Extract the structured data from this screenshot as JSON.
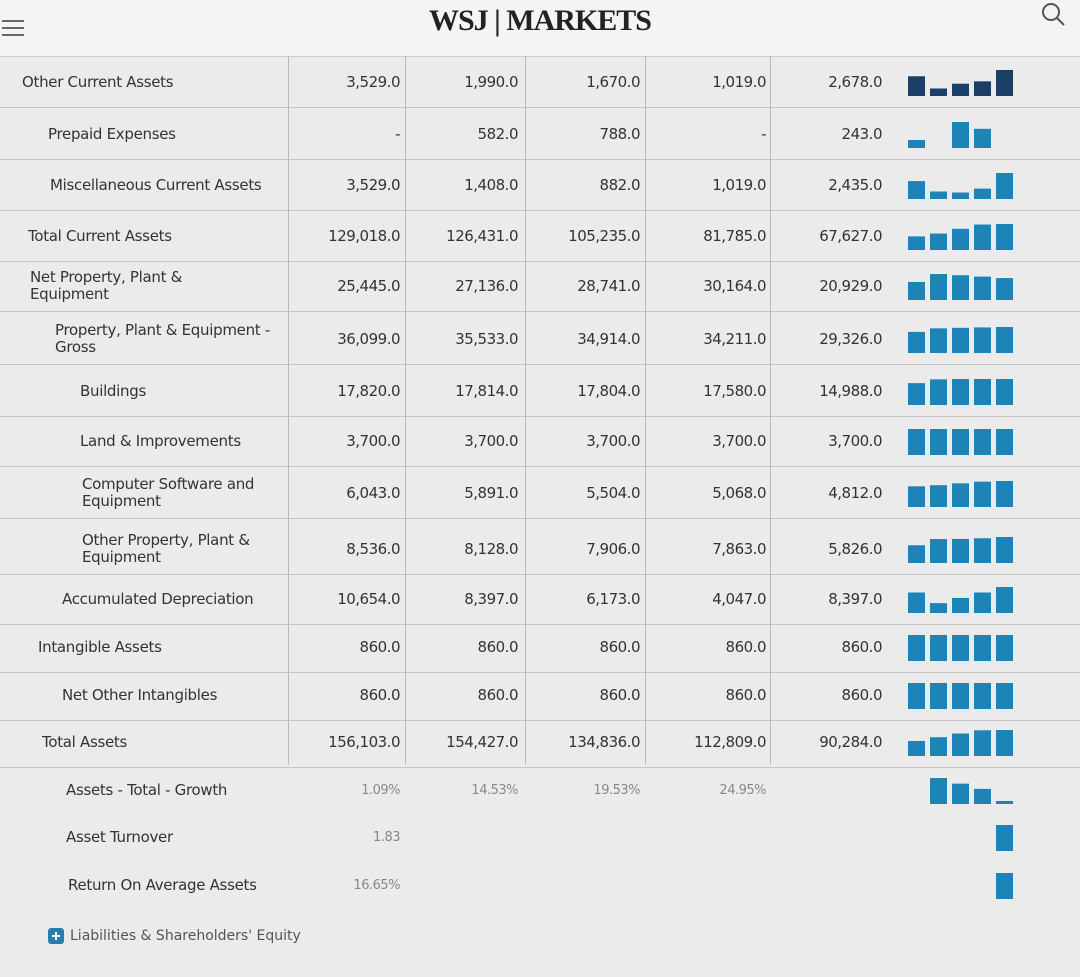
{
  "header": {
    "title": "WSJ | MARKETS"
  },
  "table": {
    "rows": [
      {
        "label": "Other Current Assets",
        "values": [
          "3,529.0",
          "1,990.0",
          "1,670.0",
          "1,019.0",
          "2,678.0"
        ]
      },
      {
        "label": "Prepaid Expenses",
        "values": [
          "-",
          "582.0",
          "788.0",
          "-",
          "243.0"
        ]
      },
      {
        "label": "Miscellaneous Current Assets",
        "values": [
          "3,529.0",
          "1,408.0",
          "882.0",
          "1,019.0",
          "2,435.0"
        ]
      },
      {
        "label": "Total Current Assets",
        "values": [
          "129,018.0",
          "126,431.0",
          "105,235.0",
          "81,785.0",
          "67,627.0"
        ]
      },
      {
        "label": "Net Property, Plant & Equipment",
        "values": [
          "25,445.0",
          "27,136.0",
          "28,741.0",
          "30,164.0",
          "20,929.0"
        ]
      },
      {
        "label": "Property, Plant & Equipment - Gross",
        "values": [
          "36,099.0",
          "35,533.0",
          "34,914.0",
          "34,211.0",
          "29,326.0"
        ]
      },
      {
        "label": "Buildings",
        "values": [
          "17,820.0",
          "17,814.0",
          "17,804.0",
          "17,580.0",
          "14,988.0"
        ]
      },
      {
        "label": "Land & Improvements",
        "values": [
          "3,700.0",
          "3,700.0",
          "3,700.0",
          "3,700.0",
          "3,700.0"
        ]
      },
      {
        "label": "Computer Software and Equipment",
        "values": [
          "6,043.0",
          "5,891.0",
          "5,504.0",
          "5,068.0",
          "4,812.0"
        ]
      },
      {
        "label": "Other Property, Plant & Equipment",
        "values": [
          "8,536.0",
          "8,128.0",
          "7,906.0",
          "7,863.0",
          "5,826.0"
        ]
      },
      {
        "label": "Accumulated Depreciation",
        "values": [
          "10,654.0",
          "8,397.0",
          "6,173.0",
          "4,047.0",
          "8,397.0"
        ]
      },
      {
        "label": "Intangible Assets",
        "values": [
          "860.0",
          "860.0",
          "860.0",
          "860.0",
          "860.0"
        ]
      },
      {
        "label": "Net Other Intangibles",
        "values": [
          "860.0",
          "860.0",
          "860.0",
          "860.0",
          "860.0"
        ]
      },
      {
        "label": "Total Assets",
        "values": [
          "156,103.0",
          "154,427.0",
          "134,836.0",
          "112,809.0",
          "90,284.0"
        ]
      },
      {
        "label": "Assets - Total - Growth",
        "values": [
          "1.09%",
          "14.53%",
          "19.53%",
          "24.95%",
          null
        ]
      },
      {
        "label": "Asset Turnover",
        "values": [
          "1.83",
          null,
          null,
          null,
          null
        ]
      },
      {
        "label": "Return On Average Assets",
        "values": [
          "16.65%",
          null,
          null,
          null,
          null
        ]
      }
    ]
  },
  "footer": {
    "link": "Liabilities & Shareholders' Equity"
  }
}
